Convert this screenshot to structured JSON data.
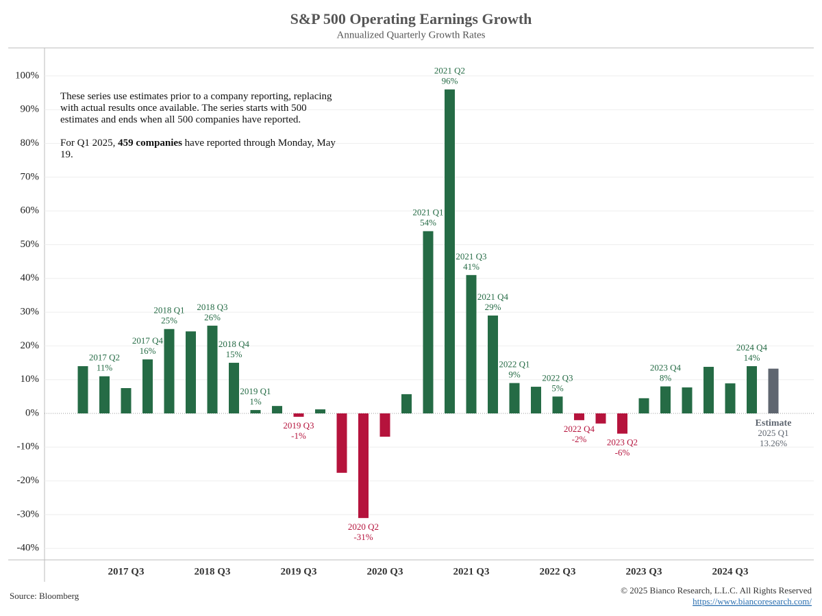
{
  "chart_data": {
    "type": "bar",
    "title": "S&P 500 Operating Earnings Growth",
    "subtitle": "Annualized Quarterly Growth Rates",
    "categories": [
      null,
      "2017 Q2",
      "2017 Q3",
      "2017 Q4",
      "2018 Q1",
      null,
      "2018 Q3",
      "2018 Q4",
      "2019 Q1",
      null,
      "2019 Q3",
      null,
      null,
      "2020 Q2",
      "2020 Q3",
      null,
      "2021 Q1",
      "2021 Q2",
      "2021 Q3",
      "2021 Q4",
      "2022 Q1",
      null,
      "2022 Q3",
      "2022 Q4",
      null,
      "2023 Q2",
      "2023 Q3",
      "2023 Q4",
      null,
      null,
      "2024 Q3",
      "2024 Q4",
      "2025 Q1"
    ],
    "values": [
      14,
      11,
      7.5,
      16,
      25,
      24.3,
      26,
      15,
      1,
      2.2,
      -1,
      1.2,
      -17.6,
      -31,
      -6.9,
      5.7,
      54,
      96,
      41,
      29,
      9,
      7.9,
      5,
      -2,
      -3,
      -6,
      4.5,
      8,
      7.7,
      13.8,
      8.9,
      14,
      13.26
    ],
    "value_labels": [
      null,
      "11%",
      null,
      "16%",
      "25%",
      null,
      "26%",
      "15%",
      "1%",
      null,
      "-1%",
      null,
      null,
      "-31%",
      null,
      null,
      "54%",
      "96%",
      "41%",
      "29%",
      "9%",
      null,
      "5%",
      "-2%",
      null,
      "-6%",
      null,
      "8%",
      null,
      null,
      null,
      "14%",
      "13.26%"
    ],
    "xtick_categories": [
      2,
      6,
      10,
      14,
      18,
      22,
      26,
      30
    ],
    "colors": [
      "#256b45",
      "#256b45",
      "#256b45",
      "#256b45",
      "#256b45",
      "#256b45",
      "#256b45",
      "#256b45",
      "#256b45",
      "#256b45",
      "#b5133c",
      "#256b45",
      "#b5133c",
      "#b5133c",
      "#b5133c",
      "#256b45",
      "#256b45",
      "#256b45",
      "#256b45",
      "#256b45",
      "#256b45",
      "#256b45",
      "#256b45",
      "#b5133c",
      "#b5133c",
      "#b5133c",
      "#256b45",
      "#256b45",
      "#256b45",
      "#256b45",
      "#256b45",
      "#256b45",
      "#5f6670"
    ],
    "estimate_label": "Estimate",
    "ylim": [
      -43.4,
      108.3
    ],
    "yticks": [
      {
        "value": -40,
        "label": "-40%"
      },
      {
        "value": -30,
        "label": "-30%"
      },
      {
        "value": -20,
        "label": "-20%"
      },
      {
        "value": -10,
        "label": "-10%"
      },
      {
        "value": 0,
        "label": "0%"
      },
      {
        "value": 10,
        "label": "10%"
      },
      {
        "value": 20,
        "label": "20%"
      },
      {
        "value": 30,
        "label": "30%"
      },
      {
        "value": 40,
        "label": "40%"
      },
      {
        "value": 50,
        "label": "50%"
      },
      {
        "value": 60,
        "label": "60%"
      },
      {
        "value": 70,
        "label": "70%"
      },
      {
        "value": 80,
        "label": "80%"
      },
      {
        "value": 90,
        "label": "90%"
      },
      {
        "value": 100,
        "label": "100%"
      }
    ],
    "grid": true,
    "note": {
      "p1": "These series use estimates prior to a company reporting, replacing with actual results once available. The series starts with 500 estimates and ends when all 500 companies have reported.",
      "p2_before": "For Q1 2025, ",
      "p2_bold": "459 companies",
      "p2_after": " have reported through Monday, May 19."
    },
    "source": "Source: Bloomberg",
    "copyright": "© 2025 Bianco Research, L.L.C. All Rights Reserved",
    "url": "https://www.biancoresearch.com/"
  }
}
